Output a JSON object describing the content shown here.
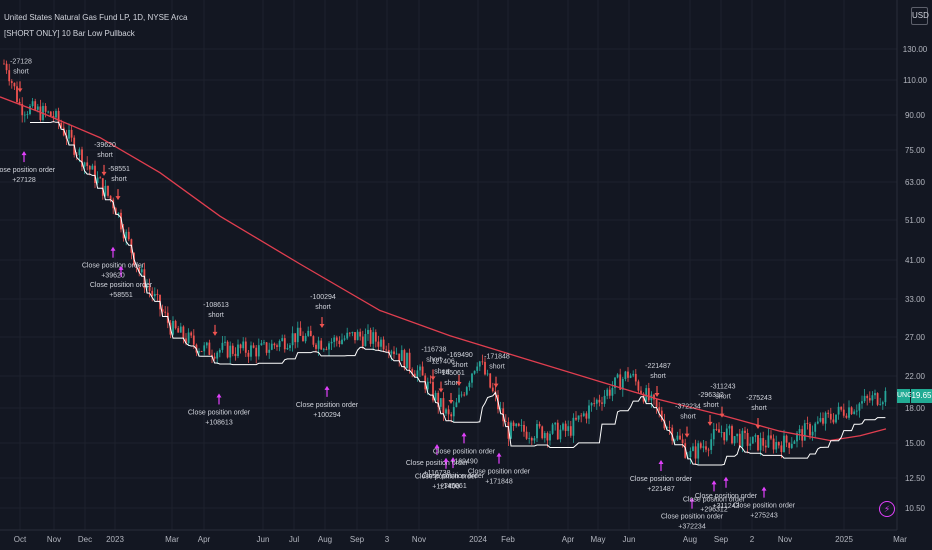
{
  "header": {
    "title": "United States Natural Gas Fund LP, 1D, NYSE Arca",
    "subtitle": "[SHORT ONLY] 10 Bar Low Pullback"
  },
  "currency": "USD",
  "price_badge": {
    "symbol": "UNG",
    "value": "19.65"
  },
  "colors": {
    "background": "#131722",
    "bull": "#26a69a",
    "bear": "#ef5350",
    "moving_average": "#e03e4f",
    "trailing_low": "#ffffff",
    "entry_arrow": "#ef5350",
    "exit_arrow": "#e040fb",
    "grid": "#1e222d"
  },
  "icons": [
    "lightning-icon"
  ],
  "chart_data": {
    "type": "candlestick",
    "scale": "log",
    "ylim": [
      10.5,
      135
    ],
    "y_ticks": [
      "130.00",
      "110.00",
      "90.00",
      "75.00",
      "63.00",
      "51.00",
      "41.00",
      "33.00",
      "27.00",
      "22.00",
      "18.00",
      "15.00",
      "12.50",
      "10.50"
    ],
    "x_ticks": [
      "Oct",
      "Nov",
      "Dec",
      "2023",
      "Mar",
      "Apr",
      "Jun",
      "Jul",
      "Aug",
      "Sep",
      "3",
      "Nov",
      "2024",
      "Feb",
      "Apr",
      "May",
      "Jun",
      "Aug",
      "Sep",
      "2",
      "Nov",
      "2025",
      "Mar"
    ],
    "price_path": [
      [
        "Sep 2022",
        120
      ],
      [
        "Oct 2022",
        95
      ],
      [
        "Nov 2022",
        90
      ],
      [
        "Dec 2022",
        70
      ],
      [
        "2023",
        55
      ],
      [
        "Jan 2023",
        38
      ],
      [
        "Mar 2023",
        28
      ],
      [
        "Apr 2023",
        25
      ],
      [
        "Jun 2023",
        25
      ],
      [
        "Jul 2023",
        27
      ],
      [
        "Aug 2023",
        26
      ],
      [
        "Sep 2023",
        27
      ],
      [
        "Oct 2023",
        26
      ],
      [
        "Nov 2023",
        22
      ],
      [
        "Dec 2023",
        17
      ],
      [
        "2024",
        24
      ],
      [
        "Feb 2024",
        16
      ],
      [
        "Apr 2024",
        16
      ],
      [
        "May 2024",
        19
      ],
      [
        "Jun 2024",
        22
      ],
      [
        "Aug 2024",
        14
      ],
      [
        "Sep 2024",
        16
      ],
      [
        "Oct 2024",
        15
      ],
      [
        "Nov 2024",
        15
      ],
      [
        "2025",
        18
      ],
      [
        "Feb 2025",
        19.65
      ]
    ],
    "series": [
      {
        "kind": "candles"
      },
      {
        "kind": "moving_average"
      },
      {
        "kind": "trailing_low"
      }
    ],
    "trades": [
      {
        "entry_label": "-27128",
        "entry_side": "short",
        "exit_label": "Close position order",
        "exit_value": "+27128"
      },
      {
        "entry_label": "-39620",
        "entry_side": "short",
        "exit_label": "Close position order",
        "exit_value": "+39620"
      },
      {
        "entry_label": "-58551",
        "entry_side": "short",
        "exit_label": "Close position order",
        "exit_value": "+58551"
      },
      {
        "entry_label": "-108613",
        "entry_side": "short",
        "exit_label": "Close position order",
        "exit_value": "+108613"
      },
      {
        "entry_label": "-100294",
        "entry_side": "short",
        "exit_label": "Close position order",
        "exit_value": "+100294"
      },
      {
        "entry_label": "-116738",
        "entry_side": "short",
        "exit_label": "Close position order",
        "exit_value": "+116738"
      },
      {
        "entry_label": "-127406",
        "entry_side": "short",
        "exit_label": "Close position order",
        "exit_value": "+127406"
      },
      {
        "entry_label": "-145061",
        "entry_side": "short",
        "exit_label": "Close position order",
        "exit_value": "+145061"
      },
      {
        "entry_label": "-169490",
        "entry_side": "short",
        "exit_label": "Close position order",
        "exit_value": "+169490"
      },
      {
        "entry_label": "-171848",
        "entry_side": "short",
        "exit_label": "Close position order",
        "exit_value": "+171848"
      },
      {
        "entry_label": "-221487",
        "entry_side": "short",
        "exit_label": "Close position order",
        "exit_value": "+221487"
      },
      {
        "entry_label": "-372234",
        "entry_side": "short",
        "exit_label": "Close position order",
        "exit_value": "+372234"
      },
      {
        "entry_label": "-296312",
        "entry_side": "short",
        "exit_label": "Close position order",
        "exit_value": "+296312"
      },
      {
        "entry_label": "-311243",
        "entry_side": "short",
        "exit_label": "Close position order",
        "exit_value": "+311243"
      },
      {
        "entry_label": "-275243",
        "entry_side": "short",
        "exit_label": "Close position order",
        "exit_value": "+275243"
      }
    ]
  }
}
